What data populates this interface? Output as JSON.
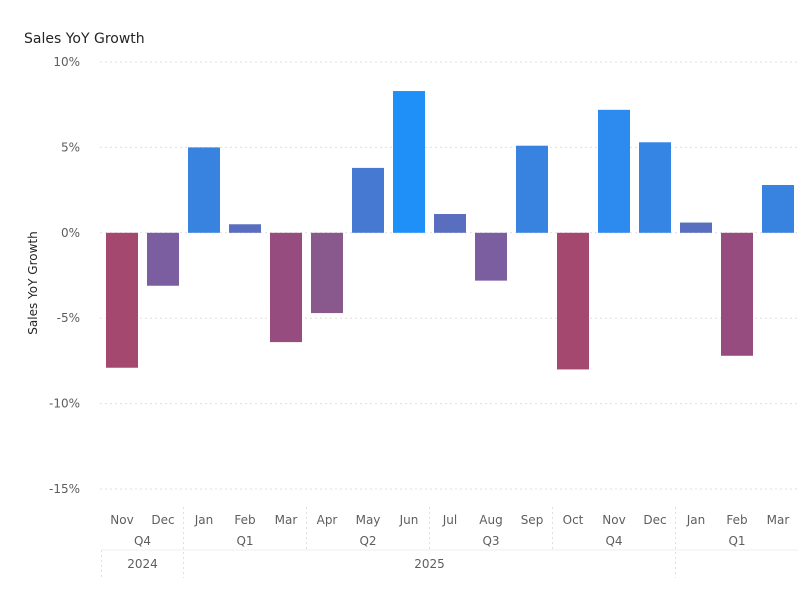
{
  "chart_data": {
    "type": "bar",
    "title": "Sales YoY Growth",
    "ylabel": "Sales YoY Growth",
    "xlabel": "",
    "ylim": [
      -15,
      10
    ],
    "yticks": [
      10,
      5,
      0,
      -5,
      -10,
      -15
    ],
    "ytick_labels": [
      "10%",
      "5%",
      "0%",
      "-5%",
      "-10%",
      "-15%"
    ],
    "grid": true,
    "categories": [
      "Nov",
      "Dec",
      "Jan",
      "Feb",
      "Mar",
      "Apr",
      "May",
      "Jun",
      "Jul",
      "Aug",
      "Sep",
      "Oct",
      "Nov",
      "Dec",
      "Jan",
      "Feb",
      "Mar"
    ],
    "values": [
      -7.9,
      -3.1,
      5.0,
      0.5,
      -6.4,
      -4.7,
      3.8,
      8.3,
      1.1,
      -2.8,
      5.1,
      -8.0,
      7.2,
      5.3,
      0.6,
      -7.2,
      2.8
    ],
    "colors": [
      "#a4486f",
      "#7a5ea0",
      "#3983e0",
      "#5a6ec0",
      "#974c80",
      "#89588c",
      "#4679d2",
      "#1e90f8",
      "#5a6ec0",
      "#7a5ea0",
      "#3983e0",
      "#a4486f",
      "#2d8aee",
      "#3585e4",
      "#5a6ec0",
      "#974c80",
      "#3983e0"
    ],
    "quarters": [
      {
        "label": "Q4",
        "start": 0,
        "end": 1
      },
      {
        "label": "Q1",
        "start": 2,
        "end": 4
      },
      {
        "label": "Q2",
        "start": 5,
        "end": 7
      },
      {
        "label": "Q3",
        "start": 8,
        "end": 10
      },
      {
        "label": "Q4",
        "start": 11,
        "end": 13
      },
      {
        "label": "Q1",
        "start": 14,
        "end": 16
      }
    ],
    "years": [
      {
        "label": "2024",
        "start": 0,
        "end": 1
      },
      {
        "label": "2025",
        "start": 2,
        "end": 13
      }
    ]
  }
}
